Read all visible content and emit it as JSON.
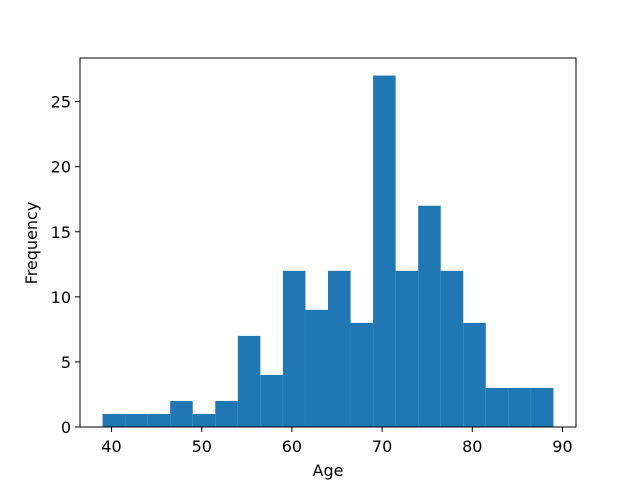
{
  "chart_data": {
    "type": "histogram",
    "x_label": "Age",
    "y_label": "Frequency",
    "bins": [
      39,
      41.5,
      44,
      46.5,
      49,
      51.5,
      54,
      56.5,
      59,
      61.5,
      64,
      66.5,
      69,
      71.5,
      74,
      76.5,
      79,
      81.5,
      84,
      86.5,
      89
    ],
    "counts": [
      1,
      1,
      1,
      2,
      1,
      2,
      7,
      4,
      12,
      9,
      12,
      8,
      27,
      12,
      17,
      12,
      8,
      3,
      3,
      3
    ],
    "color": "#1f77b4",
    "xlim": [
      36.5,
      91.5
    ],
    "xticks": [
      40,
      50,
      60,
      70,
      80,
      90
    ],
    "ylim": [
      0,
      28.35
    ],
    "yticks": [
      0,
      5,
      10,
      15,
      20,
      25
    ],
    "grid": false
  }
}
